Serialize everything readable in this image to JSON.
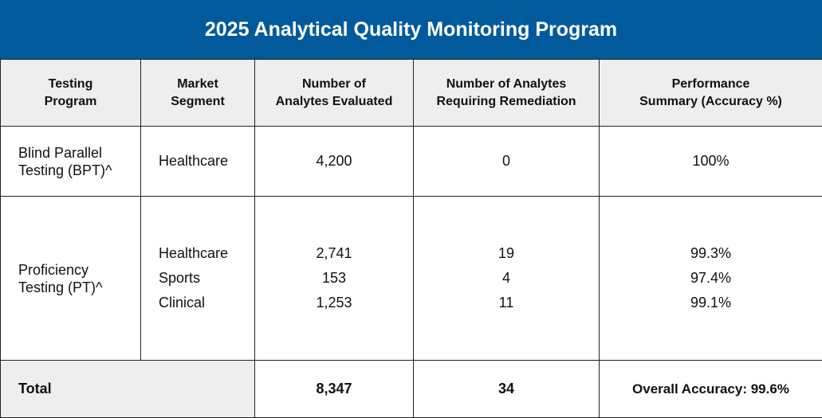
{
  "title": "2025 Analytical Quality Monitoring Program",
  "headers": {
    "program": "Testing\nProgram",
    "segment": "Market\nSegment",
    "evaluated": "Number of\nAnalytes Evaluated",
    "remediation": "Number of Analytes\nRequiring Remediation",
    "performance": "Performance\nSummary (Accuracy %)"
  },
  "rows": [
    {
      "program": "Blind Parallel\nTesting (BPT)^",
      "segments": [
        "Healthcare"
      ],
      "evaluated": [
        "4,200"
      ],
      "remediation": [
        "0"
      ],
      "accuracy": [
        "100%"
      ]
    },
    {
      "program": "Proficiency\nTesting (PT)^",
      "segments": [
        "Healthcare",
        "Sports",
        "Clinical"
      ],
      "evaluated": [
        "2,741",
        "153",
        "1,253"
      ],
      "remediation": [
        "19",
        "4",
        "11"
      ],
      "accuracy": [
        "99.3%",
        "97.4%",
        "99.1%"
      ]
    }
  ],
  "total": {
    "label": "Total",
    "evaluated": "8,347",
    "remediation": "34",
    "accuracy": "Overall Accuracy: 99.6%"
  }
}
